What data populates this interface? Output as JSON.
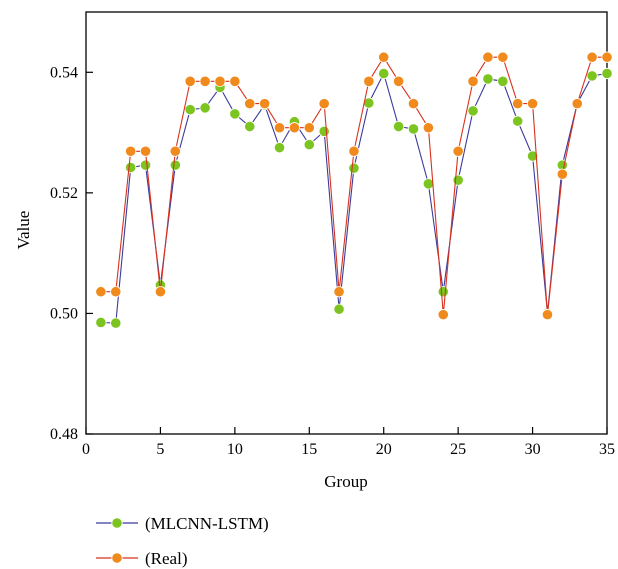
{
  "chart_data": {
    "type": "line",
    "xlabel": "Group",
    "ylabel": "Value",
    "xlim": [
      0,
      35
    ],
    "ylim": [
      0.48,
      0.55
    ],
    "xticks": [
      0,
      5,
      10,
      15,
      20,
      25,
      30,
      35
    ],
    "xtick_labels": [
      "0",
      "5",
      "10",
      "15",
      "20",
      "25",
      "30",
      "35"
    ],
    "yticks": [
      0.48,
      0.5,
      0.52,
      0.54
    ],
    "ytick_labels": [
      "0.48",
      "0.50",
      "0.52",
      "0.54"
    ],
    "grid": false,
    "legend_position": "bottom-left",
    "x": [
      1,
      2,
      3,
      4,
      5,
      6,
      7,
      8,
      9,
      10,
      11,
      12,
      13,
      14,
      15,
      16,
      17,
      18,
      19,
      20,
      21,
      22,
      23,
      24,
      25,
      26,
      27,
      28,
      29,
      30,
      31,
      32,
      33,
      34,
      35
    ],
    "series": [
      {
        "name": "(MLCNN-LSTM)",
        "line_color": "#3b3b9e",
        "marker_color": "#7cc520",
        "values": [
          0.4985,
          0.4984,
          0.5242,
          0.5246,
          0.5047,
          0.5246,
          0.5338,
          0.5341,
          0.5375,
          0.5331,
          0.531,
          0.5346,
          0.5275,
          0.5318,
          0.528,
          0.5302,
          0.5007,
          0.5241,
          0.5349,
          0.5398,
          0.531,
          0.5306,
          0.5215,
          0.5036,
          0.5221,
          0.5336,
          0.5389,
          0.5385,
          0.5319,
          0.5261,
          0.5,
          0.5246,
          0.5348,
          0.5394,
          0.5398
        ]
      },
      {
        "name": "(Real)",
        "line_color": "#d8321e",
        "marker_color": "#f08a1c",
        "values": [
          0.5036,
          0.5036,
          0.5269,
          0.5269,
          0.5036,
          0.5269,
          0.5385,
          0.5385,
          0.5385,
          0.5385,
          0.5348,
          0.5348,
          0.5308,
          0.5308,
          0.5308,
          0.5348,
          0.5036,
          0.5269,
          0.5385,
          0.5425,
          0.5385,
          0.5348,
          0.5308,
          0.4998,
          0.5269,
          0.5385,
          0.5425,
          0.5425,
          0.5348,
          0.5348,
          0.4998,
          0.5231,
          0.5348,
          0.5425,
          0.5425
        ]
      }
    ]
  }
}
